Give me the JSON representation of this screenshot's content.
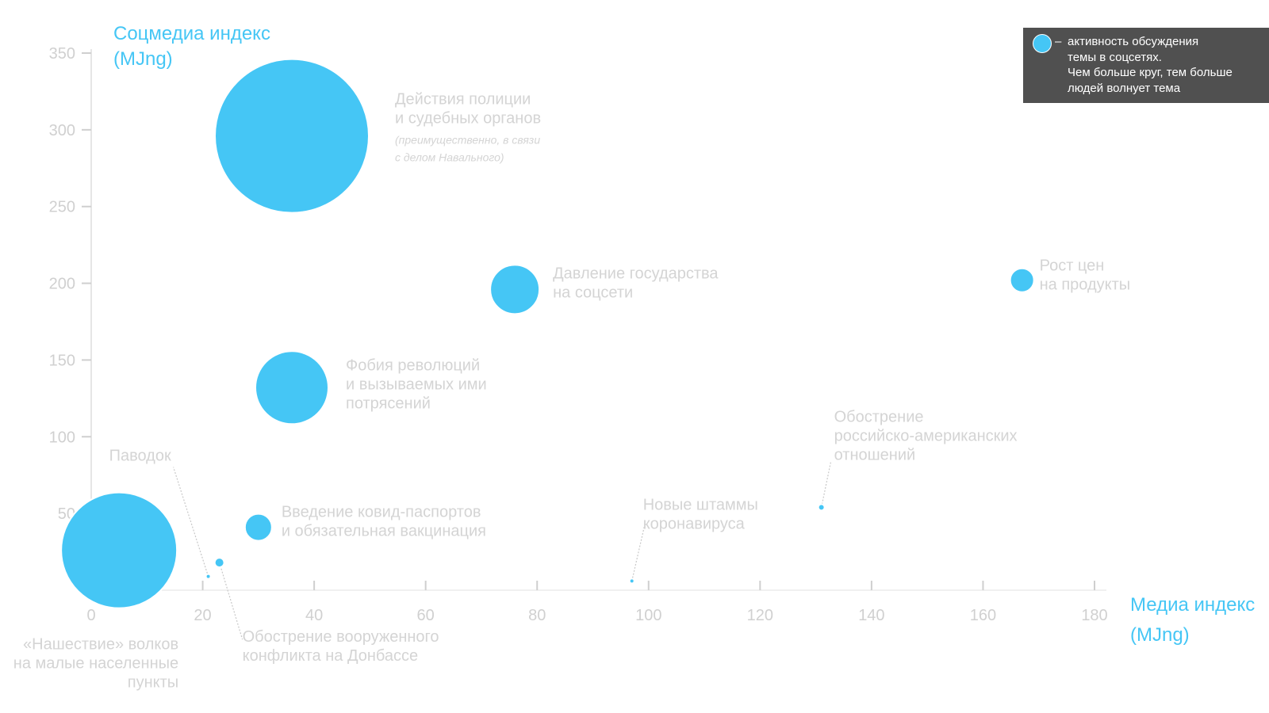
{
  "chart_data": {
    "type": "scatter",
    "title": "",
    "xlabel": [
      "Медиа индекс",
      "(MJng)"
    ],
    "ylabel": [
      "Соцмедиа индекс",
      "(MJng)"
    ],
    "xlim": [
      0,
      180
    ],
    "ylim": [
      0,
      350
    ],
    "x_ticks": [
      0,
      20,
      40,
      60,
      80,
      100,
      120,
      140,
      160,
      180
    ],
    "y_ticks": [
      50,
      100,
      150,
      200,
      250,
      300,
      350
    ],
    "grid": false,
    "bubble_color": "#45c6f5",
    "points": [
      {
        "x": 36,
        "y": 296,
        "size": 97,
        "label": [
          "Действия полиции",
          "и судебных органов"
        ],
        "note": [
          "(преимущественно, в связи",
          "с делом Навального)"
        ]
      },
      {
        "x": 76,
        "y": 196,
        "size": 31,
        "label": [
          "Давление государства",
          "на соцсети"
        ]
      },
      {
        "x": 167,
        "y": 202,
        "size": 15,
        "label": [
          "Рост цен",
          "на продукты"
        ]
      },
      {
        "x": 36,
        "y": 132,
        "size": 46,
        "label": [
          "Фобия революций",
          "и вызываемых ими",
          "потрясений"
        ]
      },
      {
        "x": 5,
        "y": 26,
        "size": 73,
        "label": [
          "«Нашествие» волков",
          "на малые населенные",
          "пункты"
        ]
      },
      {
        "x": 30,
        "y": 41,
        "size": 17,
        "label": [
          "Введение ковид-паспортов",
          "и обязательная вакцинация"
        ]
      },
      {
        "x": 23,
        "y": 18,
        "size": 6,
        "label": [
          "Обострение вооруженного",
          "конфликта на Донбассе"
        ]
      },
      {
        "x": 21,
        "y": 9,
        "size": 3,
        "label": [
          "Паводок"
        ]
      },
      {
        "x": 97,
        "y": 6,
        "size": 3,
        "label": [
          "Новые штаммы",
          "коронавируса"
        ]
      },
      {
        "x": 131,
        "y": 54,
        "size": 4,
        "label": [
          "Обострение",
          "российско-американских",
          "отношений"
        ]
      }
    ]
  },
  "legend": {
    "dash": "–",
    "lines": [
      "активность обсуждения",
      "темы в соцсетях.",
      "Чем больше круг, тем больше",
      "людей волнует тема"
    ]
  }
}
